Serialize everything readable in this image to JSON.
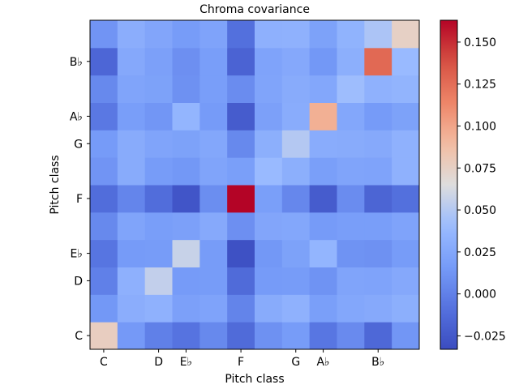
{
  "chart_data": {
    "type": "heatmap",
    "title": "Chroma covariance",
    "xlabel": "Pitch class",
    "ylabel": "Pitch class",
    "x_ticklabels": [
      "C",
      "D",
      "E♭",
      "F",
      "G",
      "A♭",
      "B♭"
    ],
    "y_ticklabels": [
      "C",
      "D",
      "E♭",
      "F",
      "G",
      "A♭",
      "B♭"
    ],
    "x_tick_indices": [
      0,
      2,
      3,
      5,
      7,
      8,
      10
    ],
    "y_tick_indices": [
      0,
      2,
      3,
      5,
      7,
      8,
      10
    ],
    "colormap": "coolwarm",
    "vmin": -0.033,
    "vmax": 0.163,
    "colorbar_ticks": [
      "−0.025",
      "0.000",
      "0.025",
      "0.050",
      "0.075",
      "0.100",
      "0.125",
      "0.150"
    ],
    "colorbar_tick_values": [
      -0.025,
      0.0,
      0.025,
      0.05,
      0.075,
      0.1,
      0.125,
      0.15
    ],
    "matrix": [
      [
        0.077,
        0.015,
        0.0,
        -0.008,
        0.005,
        -0.013,
        0.01,
        0.017,
        -0.006,
        0.006,
        -0.015,
        0.013
      ],
      [
        0.014,
        0.03,
        0.033,
        0.02,
        0.022,
        0.002,
        0.028,
        0.033,
        0.019,
        0.025,
        0.027,
        0.031
      ],
      [
        0.0,
        0.032,
        0.055,
        0.016,
        0.017,
        -0.013,
        0.016,
        0.017,
        0.011,
        0.023,
        0.022,
        0.026
      ],
      [
        -0.007,
        0.016,
        0.017,
        0.057,
        0.017,
        -0.03,
        0.014,
        0.021,
        0.036,
        0.011,
        0.01,
        0.017
      ],
      [
        0.005,
        0.023,
        0.018,
        0.02,
        0.027,
        0.009,
        0.024,
        0.025,
        0.016,
        0.018,
        0.018,
        0.022
      ],
      [
        -0.012,
        0.003,
        -0.012,
        -0.027,
        0.008,
        0.163,
        0.019,
        0.004,
        -0.023,
        0.007,
        -0.017,
        -0.01
      ],
      [
        0.012,
        0.028,
        0.017,
        0.014,
        0.023,
        0.019,
        0.04,
        0.031,
        0.019,
        0.023,
        0.022,
        0.033
      ],
      [
        0.016,
        0.028,
        0.023,
        0.021,
        0.025,
        0.005,
        0.031,
        0.05,
        0.029,
        0.028,
        0.027,
        0.033
      ],
      [
        -0.005,
        0.018,
        0.013,
        0.036,
        0.016,
        -0.023,
        0.02,
        0.029,
        0.095,
        0.025,
        0.016,
        0.021
      ],
      [
        0.005,
        0.023,
        0.021,
        0.01,
        0.018,
        0.007,
        0.023,
        0.028,
        0.025,
        0.042,
        0.033,
        0.035
      ],
      [
        -0.016,
        0.026,
        0.02,
        0.009,
        0.018,
        -0.018,
        0.022,
        0.026,
        0.014,
        0.031,
        0.127,
        0.04
      ],
      [
        0.012,
        0.03,
        0.024,
        0.017,
        0.022,
        -0.01,
        0.032,
        0.033,
        0.021,
        0.034,
        0.047,
        0.075
      ]
    ]
  }
}
